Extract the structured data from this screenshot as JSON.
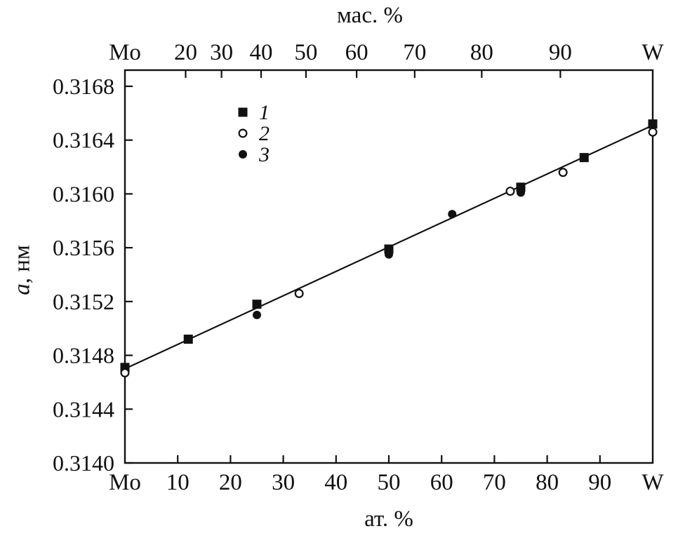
{
  "figure": {
    "background": "#ffffff",
    "ink": "#111111"
  },
  "chart_data": {
    "type": "scatter",
    "title": "",
    "axes": {
      "top_label": "мас. %",
      "bottom_label": "ат. %",
      "y_label_italic": "a",
      "y_label_rest": ", нм"
    },
    "xlim": [
      0,
      100
    ],
    "ylim": [
      0.314,
      0.31692
    ],
    "grid": false,
    "legend_position": "upper-left-inside",
    "y_ticks": [
      {
        "value": 0.314,
        "label": "0.3140"
      },
      {
        "value": 0.3144,
        "label": "0.3144"
      },
      {
        "value": 0.3148,
        "label": "0.3148"
      },
      {
        "value": 0.3152,
        "label": "0.3152"
      },
      {
        "value": 0.3156,
        "label": "0.3156"
      },
      {
        "value": 0.316,
        "label": "0.3160"
      },
      {
        "value": 0.3164,
        "label": "0.3164"
      },
      {
        "value": 0.3168,
        "label": "0.3168"
      }
    ],
    "x_ticks_bottom": [
      {
        "value": 0,
        "label": "Mo"
      },
      {
        "value": 10,
        "label": "10"
      },
      {
        "value": 20,
        "label": "20"
      },
      {
        "value": 30,
        "label": "30"
      },
      {
        "value": 40,
        "label": "40"
      },
      {
        "value": 50,
        "label": "50"
      },
      {
        "value": 60,
        "label": "60"
      },
      {
        "value": 70,
        "label": "70"
      },
      {
        "value": 80,
        "label": "80"
      },
      {
        "value": 90,
        "label": "90"
      },
      {
        "value": 100,
        "label": "W"
      }
    ],
    "x_ticks_top": [
      {
        "at": 0,
        "label": "Mo"
      },
      {
        "at": 11.5,
        "label": "20"
      },
      {
        "at": 18.3,
        "label": "30"
      },
      {
        "at": 25.8,
        "label": "40"
      },
      {
        "at": 34.3,
        "label": "50"
      },
      {
        "at": 43.9,
        "label": "60"
      },
      {
        "at": 54.9,
        "label": "70"
      },
      {
        "at": 67.6,
        "label": "80"
      },
      {
        "at": 82.5,
        "label": "90"
      },
      {
        "at": 100,
        "label": "W"
      }
    ],
    "fit_line": {
      "x1": 0,
      "y1": 0.3147,
      "x2": 100,
      "y2": 0.31651
    },
    "series": [
      {
        "name": "1",
        "marker": "filled-square",
        "points": [
          [
            0,
            0.31471
          ],
          [
            12,
            0.31492
          ],
          [
            25,
            0.31518
          ],
          [
            50,
            0.31559
          ],
          [
            75,
            0.31605
          ],
          [
            87,
            0.31627
          ],
          [
            100,
            0.31652
          ]
        ]
      },
      {
        "name": "2",
        "marker": "open-circle",
        "points": [
          [
            0,
            0.31467
          ],
          [
            33,
            0.31526
          ],
          [
            73,
            0.31602
          ],
          [
            83,
            0.31616
          ],
          [
            100,
            0.31646
          ]
        ]
      },
      {
        "name": "3",
        "marker": "filled-circle",
        "points": [
          [
            25,
            0.3151
          ],
          [
            50,
            0.31555
          ],
          [
            62,
            0.31585
          ],
          [
            75,
            0.31601
          ]
        ]
      }
    ],
    "legend": {
      "items": [
        {
          "label": "1",
          "marker": "filled-square"
        },
        {
          "label": "2",
          "marker": "open-circle"
        },
        {
          "label": "3",
          "marker": "filled-circle"
        }
      ]
    }
  }
}
